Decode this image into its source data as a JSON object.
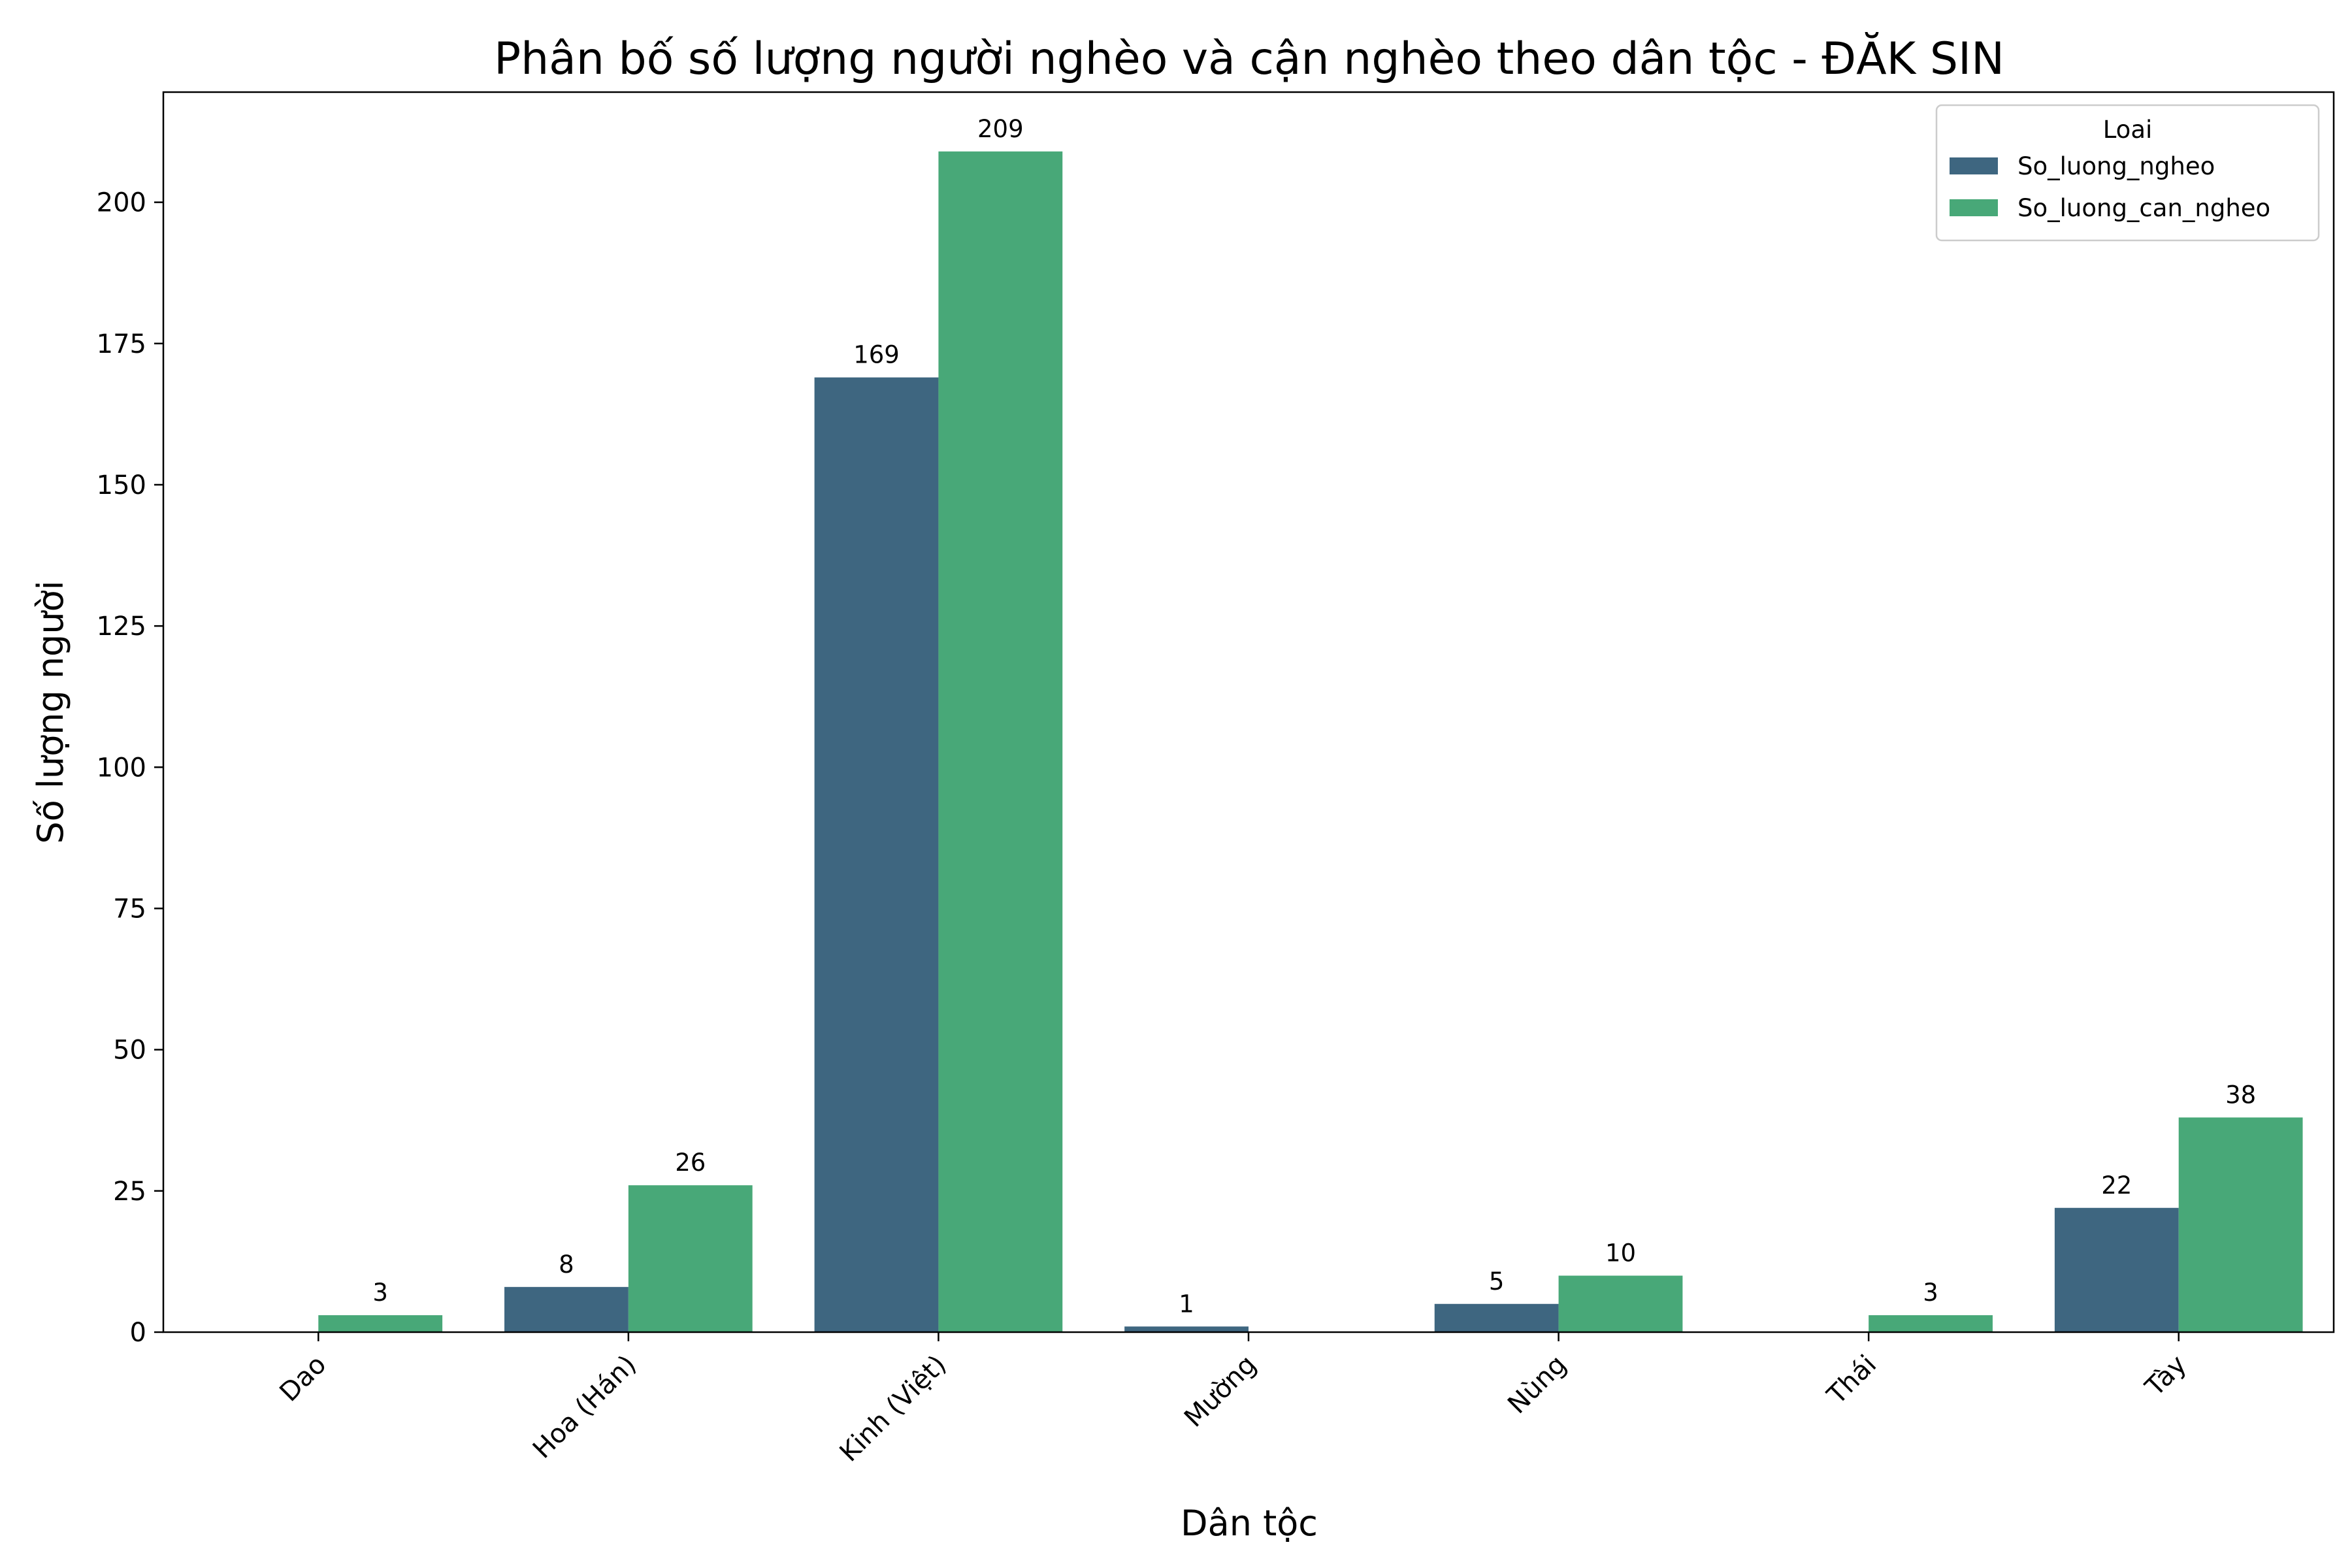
{
  "chart_data": {
    "type": "bar",
    "title": "Phân bố số lượng người nghèo và cận nghèo theo dân tộc - ĐĂK SIN",
    "xlabel": "Dân tộc",
    "ylabel": "Số lượng người",
    "categories": [
      "Dao",
      "Hoa (Hán)",
      "Kinh (Việt)",
      "Mường",
      "Nùng",
      "Thái",
      "Tày"
    ],
    "series": [
      {
        "name": "So_luong_ngheo",
        "color": "#3e6680",
        "values": [
          null,
          8,
          169,
          1,
          5,
          null,
          22
        ]
      },
      {
        "name": "So_luong_can_ngheo",
        "color": "#48a878",
        "values": [
          3,
          26,
          209,
          null,
          10,
          3,
          38
        ]
      }
    ],
    "ylim": [
      0,
      219.5
    ],
    "yticks": [
      0,
      25,
      50,
      75,
      100,
      125,
      150,
      175,
      200
    ],
    "legend": {
      "title": "Loai",
      "position": "top-right"
    },
    "grid": false
  }
}
